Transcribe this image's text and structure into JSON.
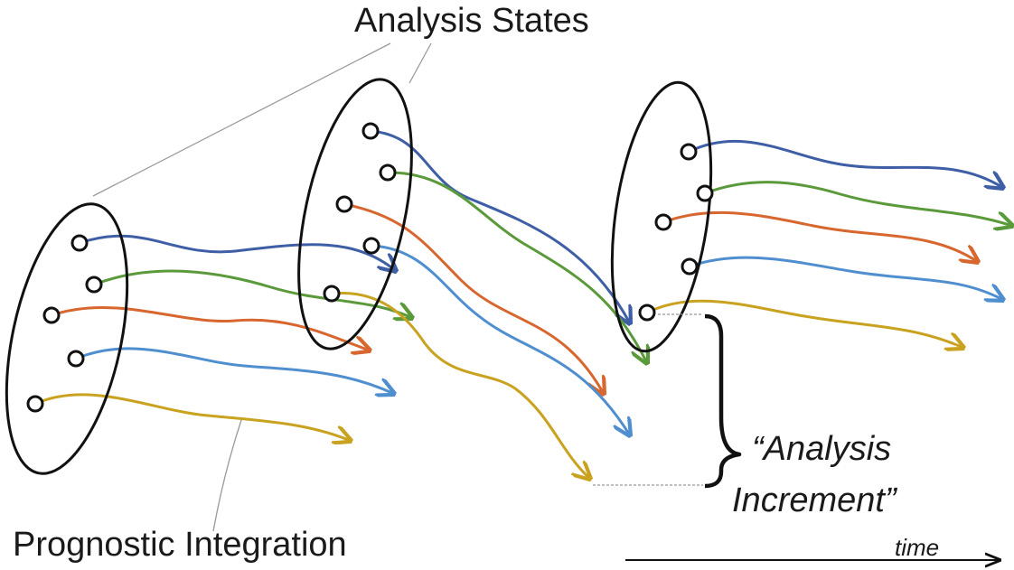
{
  "labels": {
    "analysis_states": "Analysis States",
    "prognostic_integration": "Prognostic Integration",
    "analysis_increment_line1": "“Analysis",
    "analysis_increment_line2": "Increment”",
    "time": "time"
  },
  "colors": {
    "blue": "#3e5fa6",
    "green": "#5b9a3a",
    "orange": "#d8662f",
    "lightblue": "#4f8fcf",
    "yellow": "#c9a21f",
    "outline": "#111111",
    "annotation": "#999999"
  }
}
